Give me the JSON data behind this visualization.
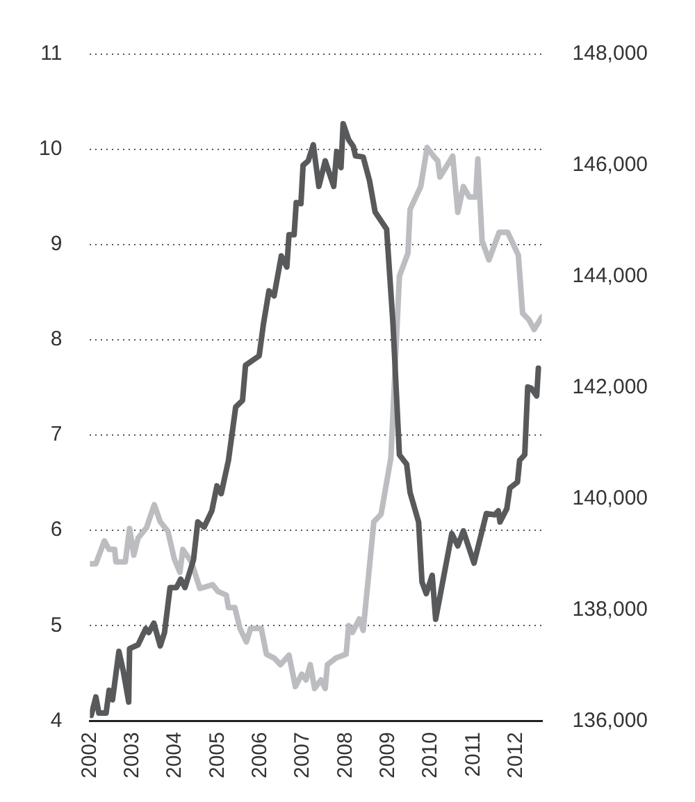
{
  "chart_data": {
    "type": "line",
    "xlim": [
      2002,
      2012.6
    ],
    "xticks": [
      2002,
      2003,
      2004,
      2005,
      2006,
      2007,
      2008,
      2009,
      2010,
      2011,
      2012
    ],
    "ylim": [
      4,
      11
    ],
    "yticks": [
      4,
      5,
      6,
      7,
      8,
      9,
      10,
      11
    ],
    "y2lim": [
      136000,
      148000
    ],
    "y2ticks": [
      {
        "value": 136000,
        "label": "136,000"
      },
      {
        "value": 138000,
        "label": "138,000"
      },
      {
        "value": 140000,
        "label": "140,000"
      },
      {
        "value": 142000,
        "label": "142,000"
      },
      {
        "value": 144000,
        "label": "144,000"
      },
      {
        "value": 146000,
        "label": "146,000"
      },
      {
        "value": 148000,
        "label": "148,000"
      }
    ],
    "grid": "y",
    "legend": false,
    "marker": "none",
    "line_style": "solid",
    "series": [
      {
        "color": "#bcbdc0",
        "axis": "y",
        "x": [
          2002.0,
          2002.14,
          2002.34,
          2002.45,
          2002.58,
          2002.61,
          2002.83,
          2002.93,
          2003.03,
          2003.13,
          2003.33,
          2003.51,
          2003.65,
          2003.83,
          2003.98,
          2004.11,
          2004.18,
          2004.38,
          2004.58,
          2004.88,
          2005.0,
          2005.2,
          2005.25,
          2005.4,
          2005.52,
          2005.67,
          2005.77,
          2006.02,
          2006.14,
          2006.32,
          2006.47,
          2006.67,
          2006.82,
          2006.97,
          2007.07,
          2007.17,
          2007.27,
          2007.42,
          2007.52,
          2007.57,
          2007.77,
          2008.01,
          2008.07,
          2008.16,
          2008.32,
          2008.41,
          2008.66,
          2008.83,
          2009.06,
          2009.26,
          2009.46,
          2009.51,
          2009.76,
          2009.91,
          2010.06,
          2010.16,
          2010.21,
          2010.51,
          2010.63,
          2010.76,
          2010.9,
          2011.05,
          2011.1,
          2011.2,
          2011.36,
          2011.6,
          2011.8,
          2012.05,
          2012.15,
          2012.3,
          2012.42,
          2012.6
        ],
        "values": [
          5.65,
          5.65,
          5.89,
          5.8,
          5.8,
          5.67,
          5.67,
          6.02,
          5.74,
          5.92,
          6.03,
          6.27,
          6.09,
          5.99,
          5.7,
          5.56,
          5.8,
          5.67,
          5.39,
          5.43,
          5.36,
          5.32,
          5.19,
          5.19,
          4.97,
          4.83,
          4.97,
          4.97,
          4.7,
          4.66,
          4.59,
          4.69,
          4.36,
          4.49,
          4.43,
          4.59,
          4.34,
          4.43,
          4.34,
          4.59,
          4.66,
          4.7,
          5.0,
          4.93,
          5.07,
          4.95,
          6.09,
          6.17,
          6.76,
          8.67,
          8.91,
          9.37,
          9.61,
          10.02,
          9.93,
          9.88,
          9.71,
          9.93,
          9.34,
          9.61,
          9.5,
          9.5,
          9.9,
          9.04,
          8.84,
          9.13,
          9.13,
          8.89,
          8.28,
          8.21,
          8.11,
          8.24
        ]
      },
      {
        "color": "#58595b",
        "axis": "y2",
        "x": [
          2002.03,
          2002.14,
          2002.21,
          2002.38,
          2002.45,
          2002.53,
          2002.68,
          2002.78,
          2002.91,
          2002.93,
          2003.13,
          2003.31,
          2003.38,
          2003.5,
          2003.65,
          2003.75,
          2003.88,
          2004.03,
          2004.13,
          2004.23,
          2004.43,
          2004.53,
          2004.68,
          2004.86,
          2004.98,
          2005.08,
          2005.25,
          2005.42,
          2005.58,
          2005.65,
          2005.97,
          2006.07,
          2006.2,
          2006.32,
          2006.49,
          2006.62,
          2006.67,
          2006.79,
          2006.84,
          2006.95,
          2007.0,
          2007.12,
          2007.24,
          2007.37,
          2007.52,
          2007.72,
          2007.79,
          2007.89,
          2007.94,
          2008.07,
          2008.18,
          2008.23,
          2008.41,
          2008.56,
          2008.69,
          2008.96,
          2009.11,
          2009.26,
          2009.43,
          2009.51,
          2009.71,
          2009.79,
          2009.89,
          2010.03,
          2010.11,
          2010.49,
          2010.63,
          2010.76,
          2011.01,
          2011.3,
          2011.5,
          2011.58,
          2011.62,
          2011.78,
          2011.85,
          2012.03,
          2012.08,
          2012.2,
          2012.27,
          2012.35,
          2012.48,
          2012.52
        ],
        "values": [
          136100,
          136430,
          136140,
          136140,
          136550,
          136380,
          137250,
          136910,
          136340,
          137300,
          137370,
          137660,
          137590,
          137760,
          137350,
          137590,
          138400,
          138400,
          138550,
          138400,
          138900,
          139580,
          139490,
          139780,
          140230,
          140090,
          140690,
          141650,
          141770,
          142400,
          142570,
          143140,
          143740,
          143650,
          144370,
          144170,
          144750,
          144750,
          145330,
          145310,
          146000,
          146080,
          146370,
          145620,
          146080,
          145620,
          146250,
          145960,
          146750,
          146460,
          146340,
          146170,
          146150,
          145720,
          145160,
          144850,
          143140,
          140790,
          140620,
          140110,
          139580,
          138500,
          138290,
          138620,
          137830,
          139370,
          139150,
          139420,
          138840,
          139730,
          139710,
          139780,
          139580,
          139820,
          140190,
          140300,
          140690,
          140790,
          142010,
          141990,
          141850,
          142350
        ]
      }
    ]
  }
}
